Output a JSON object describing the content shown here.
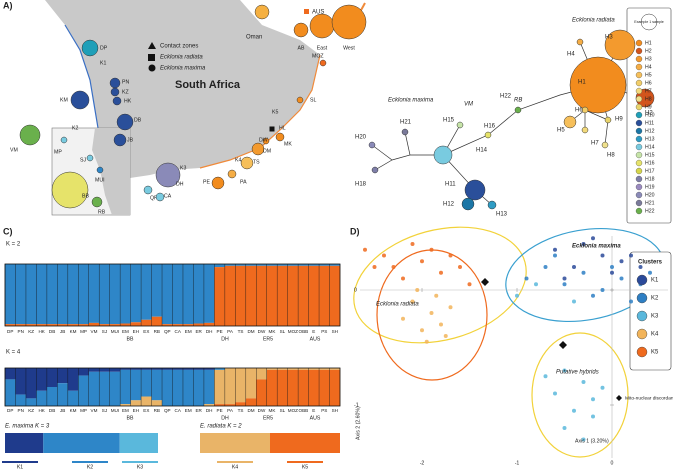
{
  "panel_a": {
    "label": "A)",
    "country": "South Africa",
    "legend": [
      "Contact zones",
      "Ecklonia radiata",
      "Ecklonia maxima"
    ],
    "oman": "Oman",
    "australia": {
      "title": "AUS",
      "sites": [
        "AB",
        "East",
        "West"
      ]
    },
    "sites": [
      "DP",
      "PN",
      "KZ",
      "HK",
      "KM",
      "VM",
      "MP",
      "SJ",
      "MUI",
      "DB",
      "JB",
      "BB",
      "RB",
      "DH",
      "QP",
      "CA",
      "PE",
      "PA",
      "TS",
      "DM",
      "DW",
      "HL",
      "MK",
      "SL",
      "MOZ"
    ],
    "coast_labels": [
      "K1",
      "K2",
      "K3",
      "K4",
      "K5"
    ]
  },
  "network": {
    "species": [
      "Ecklonia maxima",
      "Ecklonia radiata"
    ],
    "regions": [
      "VM",
      "RB"
    ],
    "example": "Example 1 sample",
    "haplotypes": [
      {
        "label": "H1",
        "color": "#f28c1e"
      },
      {
        "label": "H2",
        "color": "#d2541c"
      },
      {
        "label": "H3",
        "color": "#f39a2e"
      },
      {
        "label": "H4",
        "color": "#f5ad45"
      },
      {
        "label": "H5",
        "color": "#f6bf5a"
      },
      {
        "label": "H6",
        "color": "#f1cd68"
      },
      {
        "label": "H7",
        "color": "#f2d97a"
      },
      {
        "label": "H8",
        "color": "#efe08c"
      },
      {
        "label": "H9",
        "color": "#e9d46c"
      },
      {
        "label": "H10",
        "color": "#1f9fb8"
      },
      {
        "label": "H11",
        "color": "#2a4f9a"
      },
      {
        "label": "H12",
        "color": "#1b76a6"
      },
      {
        "label": "H13",
        "color": "#2e9cc4"
      },
      {
        "label": "H14",
        "color": "#79cbe0"
      },
      {
        "label": "H15",
        "color": "#c6e4a8"
      },
      {
        "label": "H16",
        "color": "#e6e36a"
      },
      {
        "label": "H17",
        "color": "#d6d64a"
      },
      {
        "label": "H18",
        "color": "#7e7ea8"
      },
      {
        "label": "H19",
        "color": "#9a8ac0"
      },
      {
        "label": "H20",
        "color": "#8a8ab8"
      },
      {
        "label": "H21",
        "color": "#7a7a9a"
      },
      {
        "label": "H22",
        "color": "#6ab04c"
      }
    ]
  },
  "panel_c": {
    "label": "C)",
    "populations": [
      "DP",
      "PN",
      "KZ",
      "HK",
      "DB",
      "JB",
      "KM",
      "MP",
      "VM",
      "SJ",
      "MUI",
      "EM",
      "EH",
      "EX",
      "RB",
      "QP",
      "CA",
      "EM",
      "ER",
      "DH",
      "PE",
      "PA",
      "TS",
      "DM",
      "DW",
      "MK",
      "SL",
      "MOZ",
      "OBB",
      "E",
      "PS",
      "SH"
    ],
    "k2": {
      "title": "K = 2",
      "colors": [
        "#2e86c8",
        "#ef6a1e"
      ],
      "values": [
        [
          0.97,
          0.03
        ],
        [
          0.97,
          0.03
        ],
        [
          0.97,
          0.03
        ],
        [
          0.97,
          0.03
        ],
        [
          0.97,
          0.03
        ],
        [
          0.97,
          0.03
        ],
        [
          0.97,
          0.03
        ],
        [
          0.97,
          0.03
        ],
        [
          0.95,
          0.05
        ],
        [
          0.97,
          0.03
        ],
        [
          0.97,
          0.03
        ],
        [
          0.96,
          0.04
        ],
        [
          0.94,
          0.06
        ],
        [
          0.9,
          0.1
        ],
        [
          0.85,
          0.15
        ],
        [
          0.97,
          0.03
        ],
        [
          0.97,
          0.03
        ],
        [
          0.97,
          0.03
        ],
        [
          0.96,
          0.04
        ],
        [
          0.95,
          0.05
        ],
        [
          0.05,
          0.95
        ],
        [
          0.03,
          0.97
        ],
        [
          0.03,
          0.97
        ],
        [
          0.03,
          0.97
        ],
        [
          0.03,
          0.97
        ],
        [
          0.03,
          0.97
        ],
        [
          0.03,
          0.97
        ],
        [
          0.03,
          0.97
        ],
        [
          0.03,
          0.97
        ],
        [
          0.03,
          0.97
        ],
        [
          0.03,
          0.97
        ],
        [
          0.03,
          0.97
        ]
      ]
    },
    "k4": {
      "title": "K = 4",
      "colors": [
        "#1f3b8c",
        "#2e86c8",
        "#e9b468",
        "#ef6a1e"
      ],
      "values": [
        [
          0.3,
          0.7,
          0,
          0
        ],
        [
          0.7,
          0.3,
          0,
          0
        ],
        [
          0.8,
          0.2,
          0,
          0
        ],
        [
          0.6,
          0.4,
          0,
          0
        ],
        [
          0.5,
          0.5,
          0,
          0
        ],
        [
          0.4,
          0.6,
          0,
          0
        ],
        [
          0.6,
          0.4,
          0,
          0
        ],
        [
          0.2,
          0.8,
          0,
          0
        ],
        [
          0.1,
          0.9,
          0,
          0
        ],
        [
          0.1,
          0.9,
          0,
          0
        ],
        [
          0.1,
          0.9,
          0,
          0
        ],
        [
          0.05,
          0.9,
          0.05,
          0
        ],
        [
          0.05,
          0.8,
          0.15,
          0
        ],
        [
          0.05,
          0.7,
          0.25,
          0
        ],
        [
          0.05,
          0.8,
          0.15,
          0
        ],
        [
          0.05,
          0.95,
          0,
          0
        ],
        [
          0.05,
          0.95,
          0,
          0
        ],
        [
          0.05,
          0.95,
          0,
          0
        ],
        [
          0.05,
          0.95,
          0,
          0
        ],
        [
          0.05,
          0.9,
          0.05,
          0
        ],
        [
          0,
          0.05,
          0.9,
          0.05
        ],
        [
          0,
          0,
          0.95,
          0.05
        ],
        [
          0,
          0,
          0.9,
          0.1
        ],
        [
          0,
          0,
          0.8,
          0.2
        ],
        [
          0,
          0,
          0.3,
          0.7
        ],
        [
          0,
          0,
          0.05,
          0.95
        ],
        [
          0,
          0,
          0.05,
          0.95
        ],
        [
          0,
          0,
          0.05,
          0.95
        ],
        [
          0,
          0,
          0.05,
          0.95
        ],
        [
          0,
          0,
          0.05,
          0.95
        ],
        [
          0,
          0,
          0.05,
          0.95
        ],
        [
          0,
          0,
          0.05,
          0.95
        ]
      ]
    },
    "groups": [
      "BB",
      "DH",
      "ER5",
      "AUS"
    ],
    "sub": [
      "E. maxima K = 3",
      "E. radiata K = 2"
    ],
    "clusters": [
      "K1",
      "K2",
      "K3",
      "K4",
      "K5"
    ]
  },
  "panel_d": {
    "type": "scatter",
    "label": "D)",
    "legend_title": "Clusters",
    "xlabel": "Axis 1 (3.20%)",
    "ylabel": "Axis 2 (2.60%)",
    "xticks": [
      -2,
      -1,
      0
    ],
    "yticks": [
      0,
      -1
    ],
    "annotations": [
      "Ecklonia maxima",
      "Ecklonia radiata",
      "Putative hybrids",
      "Mito-nuclear discordance"
    ],
    "series": [
      {
        "name": "K1",
        "color": "#2b4a9a",
        "x": [
          -0.6,
          -0.3,
          -0.1,
          0.1,
          -0.4,
          -0.2,
          0.2,
          -0.5,
          0.0,
          0.3
        ],
        "y": [
          0.35,
          0.4,
          0.3,
          0.25,
          0.2,
          0.45,
          0.3,
          0.1,
          0.15,
          0.2
        ]
      },
      {
        "name": "K2",
        "color": "#2e7fc4",
        "x": [
          -0.9,
          -0.7,
          -0.5,
          -0.3,
          -0.1,
          0.1,
          0.3,
          0.4,
          -0.6,
          -0.2,
          0.0,
          0.2
        ],
        "y": [
          0.1,
          0.2,
          0.05,
          0.15,
          0.0,
          0.1,
          0.05,
          0.15,
          0.3,
          -0.05,
          0.2,
          -0.1
        ]
      },
      {
        "name": "K3",
        "color": "#5ab8dc",
        "x": [
          -1.0,
          -0.8,
          -0.4,
          -0.5,
          -0.3,
          -0.6,
          -0.2,
          -0.4,
          -0.1,
          -0.5,
          -0.3,
          -0.7,
          -0.2
        ],
        "y": [
          -0.05,
          0.05,
          -0.1,
          -0.7,
          -0.8,
          -0.9,
          -0.95,
          -1.05,
          -0.85,
          -1.2,
          -1.3,
          -0.75,
          -1.1
        ]
      },
      {
        "name": "K4",
        "color": "#f2b45a",
        "x": [
          -2.1,
          -1.9,
          -2.0,
          -1.8,
          -1.7,
          -2.2,
          -1.95,
          -1.85,
          -2.05,
          -1.75
        ],
        "y": [
          -0.1,
          -0.2,
          -0.35,
          -0.3,
          -0.15,
          -0.25,
          -0.45,
          -0.05,
          0.0,
          -0.4
        ]
      },
      {
        "name": "K5",
        "color": "#ef6a1e",
        "x": [
          -2.6,
          -2.4,
          -2.3,
          -2.1,
          -2.0,
          -1.9,
          -1.7,
          -1.6,
          -2.2,
          -2.5,
          -1.8,
          -1.5
        ],
        "y": [
          0.35,
          0.3,
          0.2,
          0.4,
          0.25,
          0.35,
          0.3,
          0.2,
          0.1,
          0.2,
          0.15,
          0.05
        ]
      }
    ]
  }
}
